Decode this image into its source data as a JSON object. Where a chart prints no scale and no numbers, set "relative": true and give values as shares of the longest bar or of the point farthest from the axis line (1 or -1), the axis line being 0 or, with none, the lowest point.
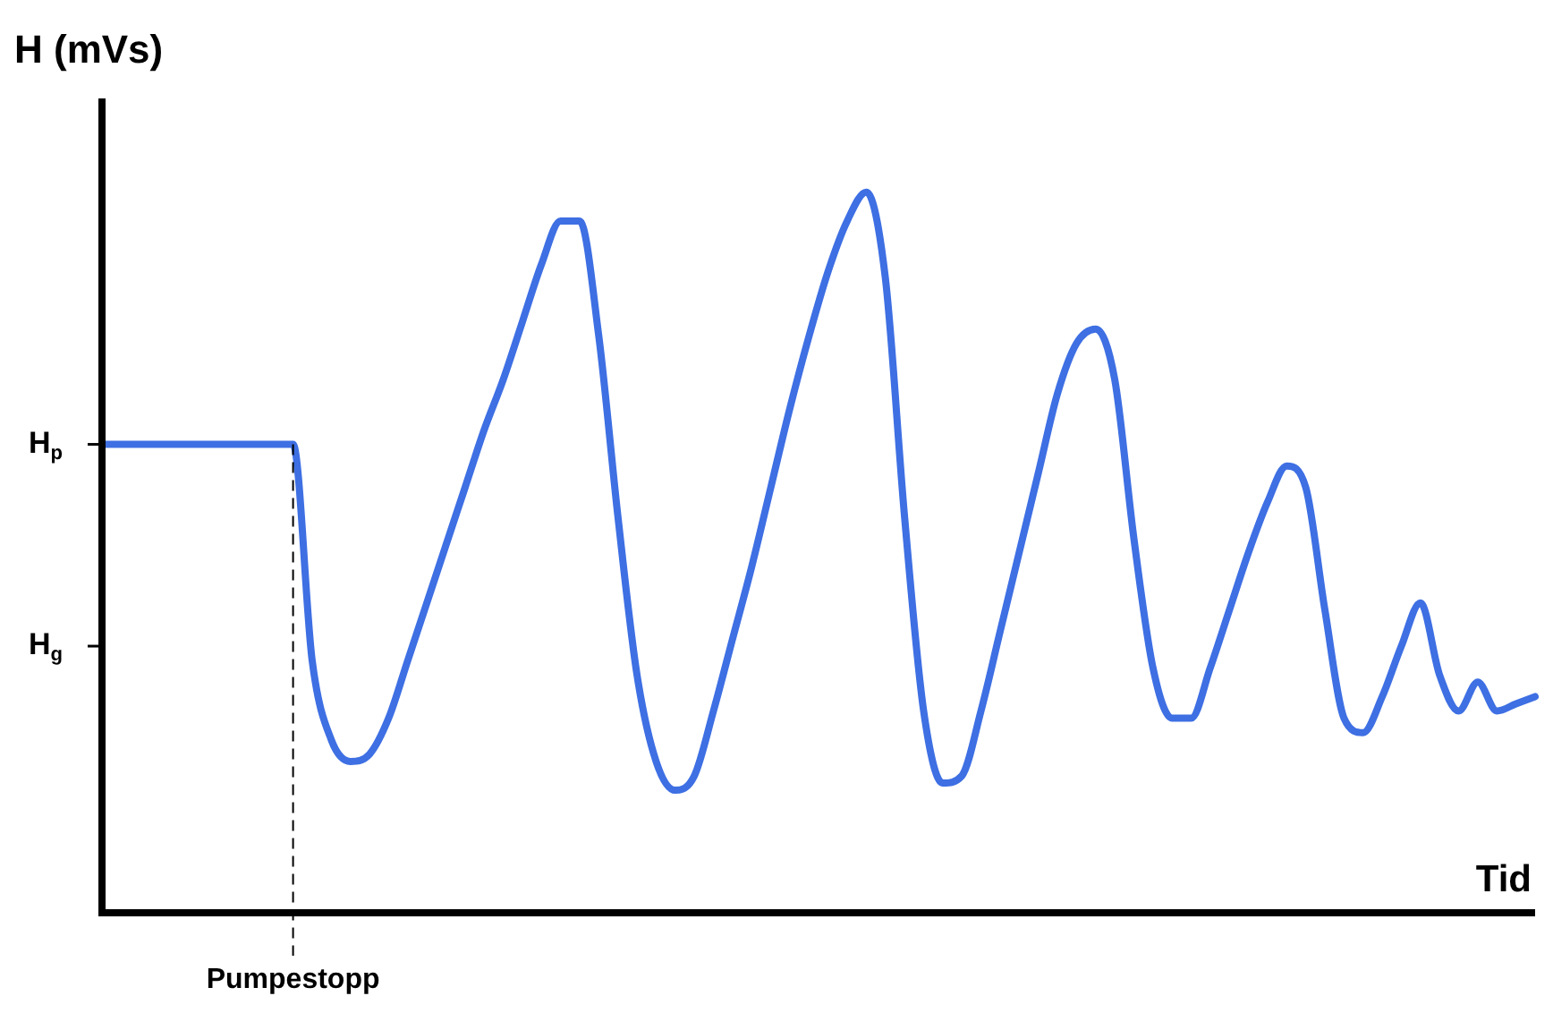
{
  "chart_data": {
    "type": "line",
    "relative": true,
    "ylabel": "H (mVs)",
    "xlabel": "Tid",
    "categories": [
      null,
      null,
      null,
      null,
      null,
      null,
      null,
      null,
      null,
      null,
      null,
      null,
      null,
      null,
      null,
      null,
      null,
      null,
      null,
      null,
      null,
      null,
      null,
      null,
      null,
      null,
      null,
      null,
      null,
      null,
      null,
      null,
      null,
      null,
      null,
      null,
      null,
      null,
      null,
      null,
      null,
      null,
      null,
      null,
      null,
      null,
      null,
      null,
      null,
      null,
      null,
      null,
      null,
      null,
      null,
      null,
      null,
      null,
      null,
      null,
      null,
      null,
      null,
      null,
      null,
      null,
      null,
      null,
      null,
      null,
      null,
      null,
      null,
      null,
      null,
      null
    ],
    "series": [
      {
        "color": "#3e6fe3",
        "values": [
          0.65,
          0.65,
          0.65,
          0.65,
          0.65,
          0.65,
          0.65,
          0.65,
          0.65,
          0.65,
          0.65,
          0.35,
          0.24,
          0.21,
          0.22,
          0.27,
          0.35,
          0.43,
          0.51,
          0.59,
          0.67,
          0.74,
          0.82,
          0.9,
          0.96,
          0.96,
          0.8,
          0.55,
          0.33,
          0.21,
          0.17,
          0.19,
          0.28,
          0.38,
          0.48,
          0.59,
          0.7,
          0.8,
          0.89,
          0.96,
          1.0,
          0.88,
          0.55,
          0.28,
          0.18,
          0.19,
          0.28,
          0.39,
          0.5,
          0.61,
          0.72,
          0.79,
          0.81,
          0.74,
          0.52,
          0.34,
          0.27,
          0.27,
          0.34,
          0.42,
          0.5,
          0.57,
          0.62,
          0.59,
          0.42,
          0.27,
          0.25,
          0.3,
          0.37,
          0.43,
          0.33,
          0.28,
          0.32,
          0.28,
          0.29,
          0.3
        ]
      }
    ],
    "ref_lines": [
      {
        "axis": "y",
        "value": 0.65,
        "label": "H$_{p}$"
      },
      {
        "axis": "y",
        "value": 0.37,
        "label": "H$_{g}$"
      }
    ],
    "annotations": [
      "Pumpestopp"
    ],
    "legend": false,
    "grid": false,
    "marker": "none",
    "line_style": "solid"
  }
}
